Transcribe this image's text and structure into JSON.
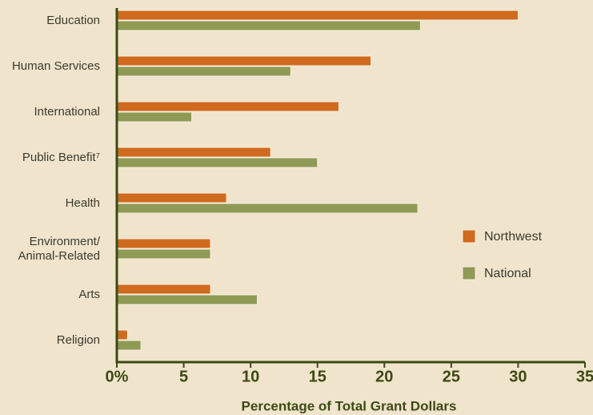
{
  "chart_data": {
    "type": "hbar",
    "xlabel": "Percentage of Total Grant Dollars",
    "categories": [
      "Education",
      "Human Services",
      "International",
      "Public Benefit⁷",
      "Health",
      "Environment/\nAnimal-Related",
      "Arts",
      "Religion"
    ],
    "series": [
      {
        "name": "Northwest",
        "color": "#d06a1e",
        "values": [
          30,
          19,
          16.6,
          11.5,
          8.2,
          7,
          7,
          0.8
        ]
      },
      {
        "name": "National",
        "color": "#8f9a55",
        "values": [
          22.7,
          13,
          5.6,
          15,
          22.5,
          7,
          10.5,
          1.8
        ]
      }
    ],
    "xlim": [
      0,
      35
    ],
    "xticks": [
      {
        "value": 0,
        "label": "0%"
      },
      5,
      10,
      15,
      20,
      25,
      30,
      35
    ],
    "grid": false,
    "legend": "right"
  }
}
